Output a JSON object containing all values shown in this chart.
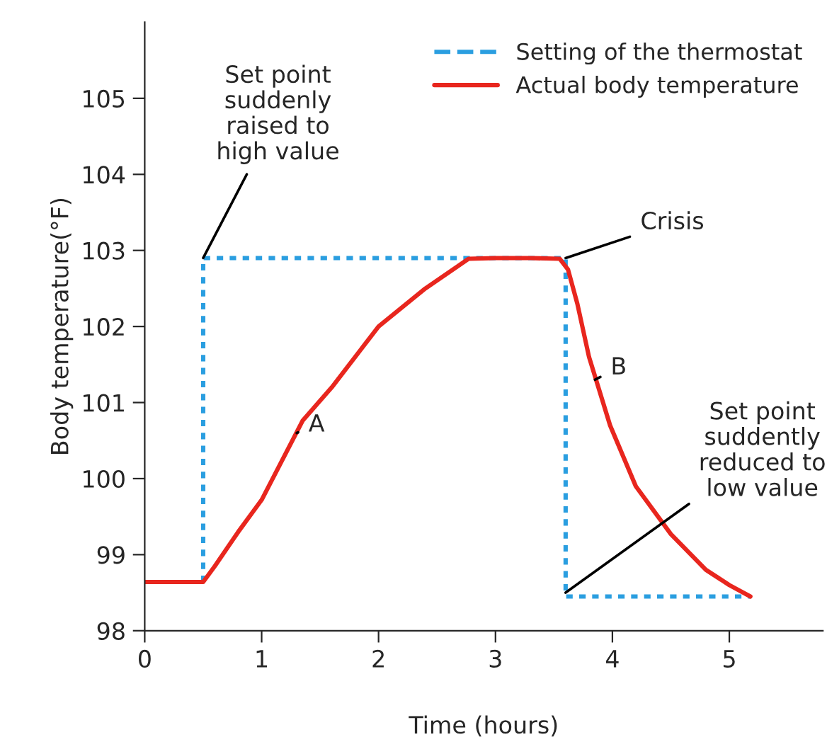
{
  "chart_data": {
    "type": "line",
    "xlabel": "Time (hours)",
    "ylabel": "Body temperature(°F)",
    "xlim": [
      0,
      5.8
    ],
    "ylim": [
      98,
      106
    ],
    "xticks": [
      0,
      1,
      2,
      3,
      4,
      5
    ],
    "yticks": [
      98,
      99,
      100,
      101,
      102,
      103,
      104,
      105
    ],
    "grid": false,
    "legend": "top right",
    "marker": "none",
    "series": [
      {
        "name": "Setting of the thermostat",
        "color": "#2a9ee0",
        "line_style": "dotted",
        "x": [
          0.5,
          0.5,
          3.6,
          3.6,
          5.18
        ],
        "values": [
          98.64,
          102.9,
          102.9,
          98.45,
          98.45
        ]
      },
      {
        "name": "Actual body temperature",
        "color": "#e8261e",
        "line_style": "solid",
        "x": [
          0,
          0.5,
          0.6,
          0.8,
          1.0,
          1.35,
          1.6,
          2.0,
          2.4,
          2.77,
          3.0,
          3.3,
          3.55,
          3.62,
          3.7,
          3.8,
          3.98,
          4.2,
          4.5,
          4.8,
          5.0,
          5.18
        ],
        "values": [
          98.64,
          98.64,
          98.85,
          99.3,
          99.72,
          100.76,
          101.2,
          102.0,
          102.5,
          102.89,
          102.9,
          102.9,
          102.89,
          102.75,
          102.3,
          101.6,
          100.7,
          99.9,
          99.27,
          98.8,
          98.6,
          98.45
        ]
      }
    ],
    "annotations": [
      {
        "text": "Set point\nsuddenly\nraised to\nhigh value",
        "x": 0.5,
        "y": 102.9
      },
      {
        "text": "Crisis",
        "x": 3.6,
        "y": 102.9
      },
      {
        "text": "A",
        "x": 1.3,
        "y": 100.6
      },
      {
        "text": "B",
        "x": 3.85,
        "y": 101.3
      },
      {
        "text": "Set point\nsuddently\nreduced to\nlow value",
        "x": 3.6,
        "y": 98.5
      }
    ]
  }
}
